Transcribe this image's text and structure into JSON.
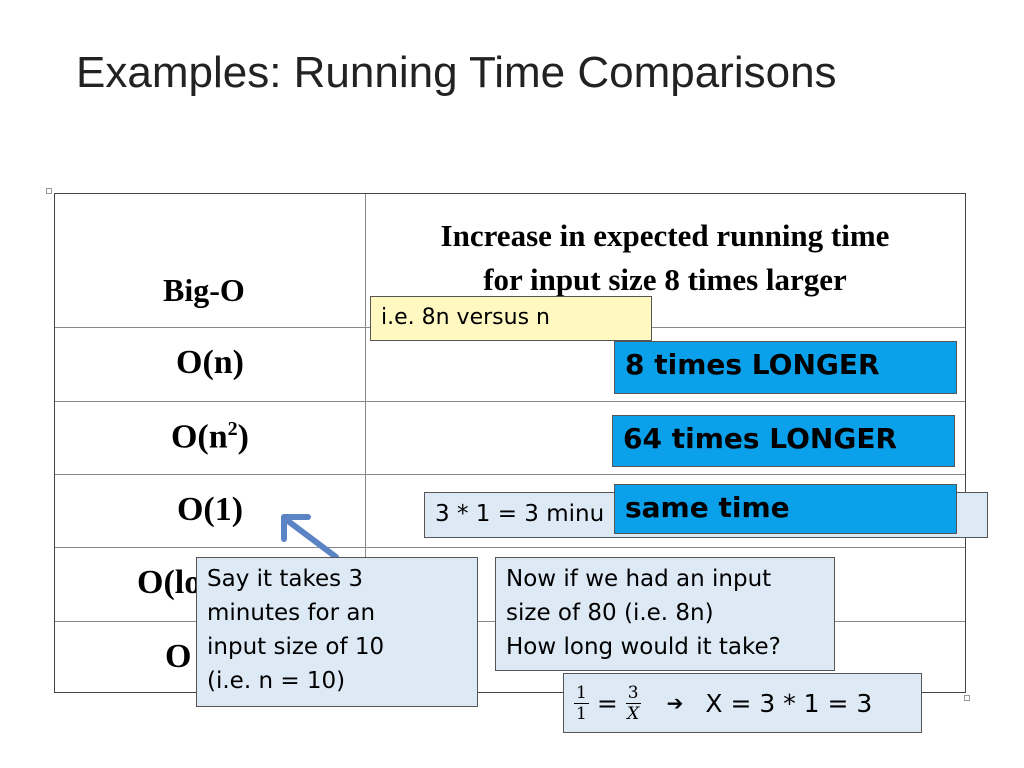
{
  "slide": {
    "title": "Examples: Running Time Comparisons"
  },
  "table": {
    "header_bigo": "Big-O",
    "header_increase_line1": "Increase in expected running time",
    "header_increase_line2": "for input size 8 times larger",
    "rows": [
      {
        "label_base": "O(n)",
        "label_sup": ""
      },
      {
        "label_base": "O(n",
        "label_sup": "2",
        "label_tail": ")"
      },
      {
        "label_base": "O(1)",
        "label_sup": ""
      },
      {
        "label_visible": "O(lo"
      },
      {
        "label_visible": "O"
      }
    ]
  },
  "callouts": {
    "ie_8n": "i.e. 8n  versus n",
    "eight_longer": "8 times LONGER",
    "sixtyfour_longer": "64 times LONGER",
    "three_minutes": "3 * 1 = 3 minu",
    "same_time": "same time",
    "say_it_takes": [
      "Say it takes 3",
      "minutes for an",
      "input size of 10",
      "(i.e. n = 10)"
    ],
    "now_if": [
      "Now if we had an input",
      "size of 80 (i.e. 8n)",
      "How long would it take?"
    ],
    "equation": {
      "frac1_num": "1",
      "frac1_den": "1",
      "equals": "=",
      "frac2_num": "3",
      "frac2_den": "X",
      "arrow": "➔",
      "result": "X = 3 * 1 = 3"
    }
  },
  "colors": {
    "blue_box": "#0aa0ea",
    "yellow_note": "#fff8c0",
    "light_note": "#dde9f5",
    "arrow": "#5b84c4"
  }
}
